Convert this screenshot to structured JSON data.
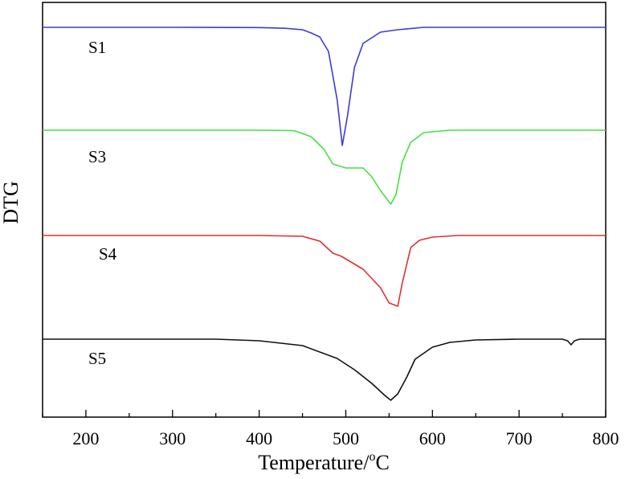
{
  "chart_data": {
    "type": "line",
    "xlabel_main": "Temperature/",
    "xlabel_sup": "o",
    "xlabel_unit": "C",
    "ylabel": "DTG",
    "xlim": [
      150,
      800
    ],
    "xticks": [
      200,
      300,
      400,
      500,
      600,
      700,
      800
    ],
    "xtick_labels": [
      "200",
      "300",
      "400",
      "500",
      "600",
      "700",
      "800"
    ],
    "grid": false,
    "series": [
      {
        "name": "S1",
        "color": "#3b3bd8",
        "baseline": 0,
        "points": [
          [
            150,
            0
          ],
          [
            300,
            0
          ],
          [
            400,
            -0.3
          ],
          [
            430,
            -1.2
          ],
          [
            450,
            -3
          ],
          [
            460,
            -7
          ],
          [
            470,
            -12
          ],
          [
            480,
            -30
          ],
          [
            490,
            -90
          ],
          [
            496,
            -147
          ],
          [
            502,
            -110
          ],
          [
            510,
            -50
          ],
          [
            520,
            -20
          ],
          [
            540,
            -6
          ],
          [
            560,
            -3
          ],
          [
            590,
            0
          ],
          [
            800,
            0
          ]
        ]
      },
      {
        "name": "S3",
        "color": "#44e044",
        "baseline": 0,
        "points": [
          [
            150,
            0
          ],
          [
            400,
            0
          ],
          [
            440,
            -0.5
          ],
          [
            460,
            -8
          ],
          [
            475,
            -24
          ],
          [
            485,
            -42
          ],
          [
            500,
            -47
          ],
          [
            520,
            -47
          ],
          [
            530,
            -58
          ],
          [
            540,
            -75
          ],
          [
            552,
            -92
          ],
          [
            558,
            -80
          ],
          [
            565,
            -40
          ],
          [
            575,
            -15
          ],
          [
            590,
            -3
          ],
          [
            620,
            0
          ],
          [
            800,
            0
          ]
        ]
      },
      {
        "name": "S4",
        "color": "#e03030",
        "baseline": 0,
        "points": [
          [
            150,
            0
          ],
          [
            400,
            0
          ],
          [
            450,
            -1
          ],
          [
            470,
            -7
          ],
          [
            485,
            -22
          ],
          [
            495,
            -26
          ],
          [
            520,
            -42
          ],
          [
            540,
            -65
          ],
          [
            550,
            -84
          ],
          [
            560,
            -88
          ],
          [
            565,
            -60
          ],
          [
            575,
            -15
          ],
          [
            585,
            -6
          ],
          [
            600,
            -2
          ],
          [
            630,
            0
          ],
          [
            800,
            0
          ]
        ]
      },
      {
        "name": "S5",
        "color": "#111111",
        "baseline": 0,
        "points": [
          [
            150,
            0
          ],
          [
            350,
            0
          ],
          [
            400,
            -2
          ],
          [
            450,
            -8
          ],
          [
            490,
            -24
          ],
          [
            510,
            -38
          ],
          [
            530,
            -55
          ],
          [
            545,
            -70
          ],
          [
            552,
            -76
          ],
          [
            560,
            -68
          ],
          [
            570,
            -48
          ],
          [
            580,
            -25
          ],
          [
            600,
            -10
          ],
          [
            620,
            -4
          ],
          [
            650,
            -1
          ],
          [
            700,
            0
          ],
          [
            750,
            0
          ],
          [
            756,
            -2
          ],
          [
            760,
            -7
          ],
          [
            764,
            -2
          ],
          [
            770,
            0
          ],
          [
            800,
            0
          ]
        ]
      }
    ]
  }
}
